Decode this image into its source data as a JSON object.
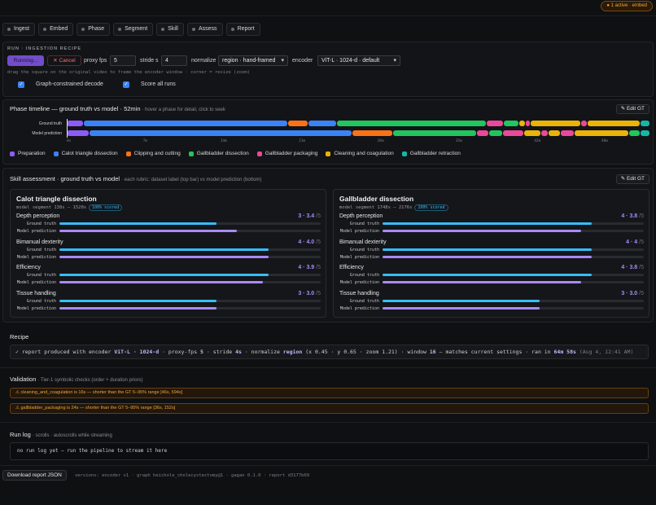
{
  "colors": {
    "preparation": "#8b5cf6",
    "calot": "#3b82f6",
    "clipping": "#f97316",
    "gallbladder_dissection": "#22c55e",
    "packaging": "#ec4899",
    "cleaning": "#eab308",
    "retraction": "#14b8a6",
    "ground_truth_bar": "#38bdf8",
    "model_bar": "#a78bfa"
  },
  "header": {
    "active_badge": "● 1 active · embed"
  },
  "tabs": [
    {
      "label": "Ingest"
    },
    {
      "label": "Embed"
    },
    {
      "label": "Phase"
    },
    {
      "label": "Segment"
    },
    {
      "label": "Skill"
    },
    {
      "label": "Assess"
    },
    {
      "label": "Report"
    }
  ],
  "run": {
    "section_label": "RUN · INGESTION RECIPE",
    "running_label": "Running...",
    "cancel_label": "✕ Cancel",
    "proxy_fps_label": "proxy fps",
    "proxy_fps_value": "5",
    "stride_label": "stride s",
    "stride_value": "4",
    "normalize_label": "normalize",
    "normalize_value": "region · hand-framed",
    "encoder_label": "encoder",
    "encoder_value": "ViT-L · 1024-d · default",
    "hint": "drag the square on the original video to frame the encoder window · corner = resize (zoom)",
    "graph_decode_label": "Graph-constrained decode",
    "score_all_label": "Score all runs",
    "check_mark": "✓"
  },
  "timeline": {
    "title": "Phase timeline — ground truth vs model · 52min",
    "note": "· hover a phase for detail, click to seek",
    "edit_label": "✎ Edit GT",
    "row_gt": "Ground truth",
    "row_model": "Model prediction",
    "ticks": [
      "0s",
      "7m",
      "14m",
      "21m",
      "28m",
      "35m",
      "42m",
      "48m"
    ],
    "gt_segments": [
      {
        "phase": "preparation",
        "min": 1.5
      },
      {
        "phase": "calot",
        "min": 18.5
      },
      {
        "phase": "clipping",
        "min": 1.8
      },
      {
        "phase": "calot",
        "min": 2.5
      },
      {
        "phase": "gallbladder_dissection",
        "min": 13.6
      },
      {
        "phase": "packaging",
        "min": 1.5
      },
      {
        "phase": "gallbladder_dissection",
        "min": 1.3
      },
      {
        "phase": "cleaning",
        "min": 0.5
      },
      {
        "phase": "packaging",
        "min": 0.4
      },
      {
        "phase": "cleaning",
        "min": 4.5
      },
      {
        "phase": "packaging",
        "min": 0.5
      },
      {
        "phase": "cleaning",
        "min": 4.8
      },
      {
        "phase": "retraction",
        "min": 0.8
      }
    ],
    "model_segments": [
      {
        "phase": "preparation",
        "min": 2.0
      },
      {
        "phase": "calot",
        "min": 23.7
      },
      {
        "phase": "clipping",
        "min": 3.6
      },
      {
        "phase": "gallbladder_dissection",
        "min": 7.5
      },
      {
        "phase": "packaging",
        "min": 1.0
      },
      {
        "phase": "gallbladder_dissection",
        "min": 1.2
      },
      {
        "phase": "packaging",
        "min": 1.8
      },
      {
        "phase": "cleaning",
        "min": 1.5
      },
      {
        "phase": "packaging",
        "min": 0.6
      },
      {
        "phase": "cleaning",
        "min": 1.0
      },
      {
        "phase": "packaging",
        "min": 1.2
      },
      {
        "phase": "cleaning",
        "min": 4.8
      },
      {
        "phase": "gallbladder_dissection",
        "min": 1.0
      },
      {
        "phase": "retraction",
        "min": 0.8
      }
    ],
    "legend": [
      {
        "phase": "preparation",
        "label": "Preparation"
      },
      {
        "phase": "calot",
        "label": "Calot triangle dissection"
      },
      {
        "phase": "clipping",
        "label": "Clipping and cutting"
      },
      {
        "phase": "gallbladder_dissection",
        "label": "Gallbladder dissection"
      },
      {
        "phase": "packaging",
        "label": "Gallbladder packaging"
      },
      {
        "phase": "cleaning",
        "label": "Cleaning and coagulation"
      },
      {
        "phase": "retraction",
        "label": "Gallbladder retraction"
      }
    ]
  },
  "skill": {
    "title": "Skill assessment · ground truth vs model",
    "note": "· each rubric: dataset label (top bar) vs model prediction (bottom)",
    "edit_label": "✎ Edit GT",
    "gt_label": "Ground truth",
    "model_label": "Model prediction",
    "scale_suffix": "/5",
    "scored_badge": "100% scored",
    "cards": [
      {
        "title": "Calot triangle dissection",
        "segment": "model segment 138s – 1520s",
        "rubrics": [
          {
            "name": "Depth perception",
            "gt": "3",
            "model": "3.4",
            "gt_frac": 0.6,
            "model_frac": 0.68
          },
          {
            "name": "Bimanual dexterity",
            "gt": "4",
            "model": "4.0",
            "gt_frac": 0.8,
            "model_frac": 0.8
          },
          {
            "name": "Efficiency",
            "gt": "4",
            "model": "3.9",
            "gt_frac": 0.8,
            "model_frac": 0.78
          },
          {
            "name": "Tissue handling",
            "gt": "3",
            "model": "3.0",
            "gt_frac": 0.6,
            "model_frac": 0.6
          }
        ]
      },
      {
        "title": "Gallbladder dissection",
        "segment": "model segment 1748s – 2176s",
        "rubrics": [
          {
            "name": "Depth perception",
            "gt": "4",
            "model": "3.8",
            "gt_frac": 0.8,
            "model_frac": 0.76
          },
          {
            "name": "Bimanual dexterity",
            "gt": "4",
            "model": "4",
            "gt_frac": 0.8,
            "model_frac": 0.8
          },
          {
            "name": "Efficiency",
            "gt": "4",
            "model": "3.8",
            "gt_frac": 0.8,
            "model_frac": 0.76
          },
          {
            "name": "Tissue handling",
            "gt": "3",
            "model": "3.0",
            "gt_frac": 0.6,
            "model_frac": 0.6
          }
        ]
      }
    ]
  },
  "recipe": {
    "title": "Recipe",
    "check": "✓",
    "t1": "report produced with encoder",
    "encoder": "ViT-L · 1024-d",
    "t2": "· proxy-fps",
    "fps": "5",
    "t3": "· stride",
    "stride": "4s",
    "t4": "· normalize",
    "normalize": "region",
    "t5": "(x 0.45 · y 0.65 · zoom 1.21) · window",
    "window": "16",
    "t6": "— matches current settings · ran in",
    "ran": "64m 58s",
    "when": "(Aug 4, 12:41 AM)"
  },
  "validation": {
    "title": "Validation",
    "note": "· Tier-1 symbolic checks (order + duration priors)",
    "items": [
      "⚠ cleaning_and_coagulation is 16s — shorter than the GT 5–95% range [46s, 594s]",
      "⚠ gallbladder_packaging is 24s — shorter than the GT 5–95% range [36s, 152s]"
    ]
  },
  "runlog": {
    "title": "Run log",
    "note": "· scrolls · autoscrolls while streaming",
    "empty": "no run log yet — run the pipeline to stream it here"
  },
  "footer": {
    "download_label": "Download report JSON",
    "versions": "versions: encoder v1 · graph heichole_cholecystectomy@1 · gagan 0.1.0 · report d3177b69"
  }
}
